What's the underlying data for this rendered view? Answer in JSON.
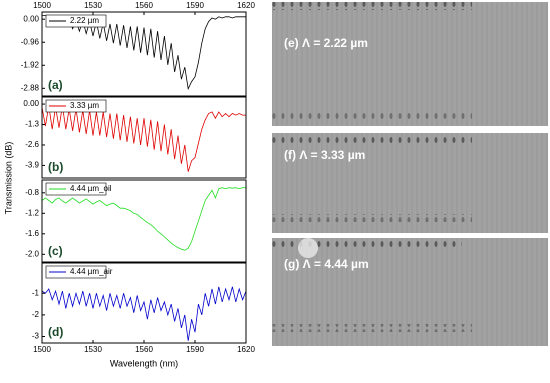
{
  "chart_data": [
    {
      "type": "line",
      "annotation": "(a)",
      "ylabel": "Transmission (dB)",
      "x": [
        1500,
        1502,
        1504,
        1506,
        1508,
        1510,
        1512,
        1514,
        1516,
        1518,
        1520,
        1522,
        1524,
        1526,
        1528,
        1530,
        1532,
        1534,
        1536,
        1538,
        1540,
        1542,
        1544,
        1546,
        1548,
        1550,
        1552,
        1554,
        1556,
        1558,
        1560,
        1562,
        1564,
        1566,
        1568,
        1570,
        1572,
        1574,
        1576,
        1578,
        1580,
        1582,
        1584,
        1586,
        1588,
        1590,
        1592,
        1594,
        1596,
        1598,
        1600,
        1602,
        1604,
        1606,
        1608,
        1610,
        1612,
        1614,
        1616,
        1618,
        1620
      ],
      "series": [
        {
          "name": "2.22 µm",
          "color": "#000000",
          "values": [
            0.15,
            0.15,
            0.12,
            0.1,
            0.05,
            -0.1,
            0.0,
            -0.3,
            0.0,
            -0.4,
            -0.05,
            -0.5,
            -0.05,
            -0.6,
            -0.1,
            -0.7,
            -0.1,
            -0.8,
            -0.15,
            -0.9,
            -0.2,
            -1.0,
            -0.2,
            -1.1,
            -0.25,
            -1.2,
            -0.3,
            -1.3,
            -0.3,
            -1.4,
            -0.35,
            -1.5,
            -0.4,
            -1.6,
            -0.5,
            -1.7,
            -0.7,
            -1.9,
            -1.0,
            -2.2,
            -1.5,
            -2.5,
            -2.0,
            -2.9,
            -2.6,
            -2.4,
            -1.8,
            -1.0,
            -0.4,
            -0.1,
            0.05,
            0.0,
            0.1,
            0.05,
            0.1,
            0.1,
            0.05,
            0.1,
            0.1,
            0.1,
            0.1
          ]
        }
      ],
      "xlim": [
        1500,
        1620
      ],
      "xticks": [
        1500,
        1530,
        1560,
        1590,
        1620
      ],
      "ylim": [
        -3.2,
        0.3
      ],
      "yticks": [
        {
          "value": 0,
          "label": "0.00"
        },
        -0.96,
        -1.92,
        -2.88
      ]
    },
    {
      "type": "line",
      "annotation": "(b)",
      "x": [
        1500,
        1502,
        1504,
        1506,
        1508,
        1510,
        1512,
        1514,
        1516,
        1518,
        1520,
        1522,
        1524,
        1526,
        1528,
        1530,
        1532,
        1534,
        1536,
        1538,
        1540,
        1542,
        1544,
        1546,
        1548,
        1550,
        1552,
        1554,
        1556,
        1558,
        1560,
        1562,
        1564,
        1566,
        1568,
        1570,
        1572,
        1574,
        1576,
        1578,
        1580,
        1582,
        1584,
        1586,
        1588,
        1590,
        1592,
        1594,
        1596,
        1598,
        1600,
        1602,
        1604,
        1606,
        1608,
        1610,
        1612,
        1614,
        1616,
        1618,
        1620
      ],
      "series": [
        {
          "name": "3.33 µm",
          "color": "#e00000",
          "values": [
            -0.2,
            -1.4,
            -0.1,
            -1.6,
            -0.2,
            -1.5,
            -0.1,
            -1.6,
            -0.3,
            -1.7,
            -0.3,
            -1.8,
            -0.4,
            -1.9,
            -0.4,
            -2.0,
            -0.5,
            -2.0,
            -0.5,
            -2.1,
            -0.6,
            -2.2,
            -0.6,
            -2.3,
            -0.7,
            -2.4,
            -0.8,
            -2.5,
            -0.9,
            -2.6,
            -0.9,
            -2.7,
            -1.0,
            -2.9,
            -1.1,
            -3.0,
            -1.3,
            -3.2,
            -1.6,
            -3.5,
            -2.0,
            -3.8,
            -2.6,
            -4.3,
            -3.6,
            -3.4,
            -2.5,
            -1.6,
            -1.0,
            -0.6,
            -0.5,
            -0.9,
            -0.5,
            -0.8,
            -0.6,
            -0.8,
            -0.6,
            -0.7,
            -0.6,
            -0.7,
            -0.7
          ]
        }
      ],
      "xlim": [
        1500,
        1620
      ],
      "ylim": [
        -4.7,
        0.45
      ],
      "yticks": [
        {
          "value": 0,
          "label": "0.00"
        },
        -1.3,
        -2.6,
        -3.9
      ]
    },
    {
      "type": "line",
      "annotation": "(c)",
      "x": [
        1500,
        1502,
        1504,
        1506,
        1508,
        1510,
        1512,
        1514,
        1516,
        1518,
        1520,
        1522,
        1524,
        1526,
        1528,
        1530,
        1532,
        1534,
        1536,
        1538,
        1540,
        1542,
        1544,
        1546,
        1548,
        1550,
        1552,
        1554,
        1556,
        1558,
        1560,
        1562,
        1564,
        1566,
        1568,
        1570,
        1572,
        1574,
        1576,
        1578,
        1580,
        1582,
        1584,
        1586,
        1588,
        1590,
        1592,
        1594,
        1596,
        1598,
        1600,
        1602,
        1604,
        1606,
        1608,
        1610,
        1612,
        1614,
        1616,
        1618,
        1620
      ],
      "series": [
        {
          "name": "4.44 µm_oil",
          "color": "#22dd22",
          "values": [
            -0.95,
            -0.9,
            -0.95,
            -1.0,
            -0.93,
            -0.9,
            -0.96,
            -1.0,
            -0.95,
            -0.9,
            -0.95,
            -1.0,
            -0.96,
            -0.92,
            -0.97,
            -1.02,
            -0.98,
            -0.95,
            -1.0,
            -1.05,
            -1.02,
            -1.0,
            -1.05,
            -1.1,
            -1.1,
            -1.12,
            -1.15,
            -1.2,
            -1.22,
            -1.28,
            -1.33,
            -1.38,
            -1.42,
            -1.48,
            -1.55,
            -1.6,
            -1.66,
            -1.72,
            -1.78,
            -1.83,
            -1.87,
            -1.9,
            -1.92,
            -1.88,
            -1.75,
            -1.55,
            -1.35,
            -1.15,
            -0.95,
            -0.85,
            -0.75,
            -0.9,
            -0.72,
            -0.7,
            -0.72,
            -0.7,
            -0.71,
            -0.7,
            -0.72,
            -0.7,
            -0.7
          ]
        }
      ],
      "xlim": [
        1500,
        1620
      ],
      "ylim": [
        -2.15,
        -0.55
      ],
      "yticks": [
        -0.8,
        -1.2,
        -1.6,
        {
          "value": -2,
          "label": "-2.0"
        }
      ]
    },
    {
      "type": "line",
      "annotation": "(d)",
      "xlabel": "Wavelength (nm)",
      "x": [
        1500,
        1502,
        1504,
        1506,
        1508,
        1510,
        1512,
        1514,
        1516,
        1518,
        1520,
        1522,
        1524,
        1526,
        1528,
        1530,
        1532,
        1534,
        1536,
        1538,
        1540,
        1542,
        1544,
        1546,
        1548,
        1550,
        1552,
        1554,
        1556,
        1558,
        1560,
        1562,
        1564,
        1566,
        1568,
        1570,
        1572,
        1574,
        1576,
        1578,
        1580,
        1582,
        1584,
        1586,
        1588,
        1590,
        1592,
        1594,
        1596,
        1598,
        1600,
        1602,
        1604,
        1606,
        1608,
        1610,
        1612,
        1614,
        1616,
        1618,
        1620
      ],
      "series": [
        {
          "name": "4.44 µm_air",
          "color": "#0000cc",
          "values": [
            -0.9,
            -1.0,
            -0.8,
            -1.3,
            -0.9,
            -1.5,
            -0.9,
            -1.7,
            -1.0,
            -1.6,
            -1.0,
            -1.5,
            -0.9,
            -1.6,
            -1.0,
            -1.7,
            -1.0,
            -1.6,
            -1.1,
            -1.8,
            -1.0,
            -1.6,
            -1.1,
            -1.7,
            -1.0,
            -1.6,
            -1.2,
            -1.9,
            -1.1,
            -1.8,
            -1.4,
            -2.2,
            -1.3,
            -1.9,
            -1.2,
            -1.8,
            -1.4,
            -2.0,
            -1.5,
            -2.3,
            -1.7,
            -2.6,
            -2.0,
            -3.2,
            -2.2,
            -2.8,
            -1.5,
            -2.0,
            -1.0,
            -1.6,
            -0.8,
            -1.5,
            -0.7,
            -1.4,
            -0.8,
            -1.3,
            -0.7,
            -1.4,
            -0.8,
            -1.3,
            -0.9
          ]
        }
      ],
      "xlim": [
        1500,
        1620
      ],
      "xticks": [
        1500,
        1530,
        1560,
        1590,
        1620
      ],
      "ylim": [
        -3.3,
        0.4
      ],
      "yticks": [
        -1,
        -2,
        -3
      ]
    }
  ],
  "images": [
    {
      "label": "(e)  Λ = 2.22 µm"
    },
    {
      "label": "(f)  Λ = 3.33 µm"
    },
    {
      "label": "(g)  Λ = 4.44 µm"
    }
  ]
}
